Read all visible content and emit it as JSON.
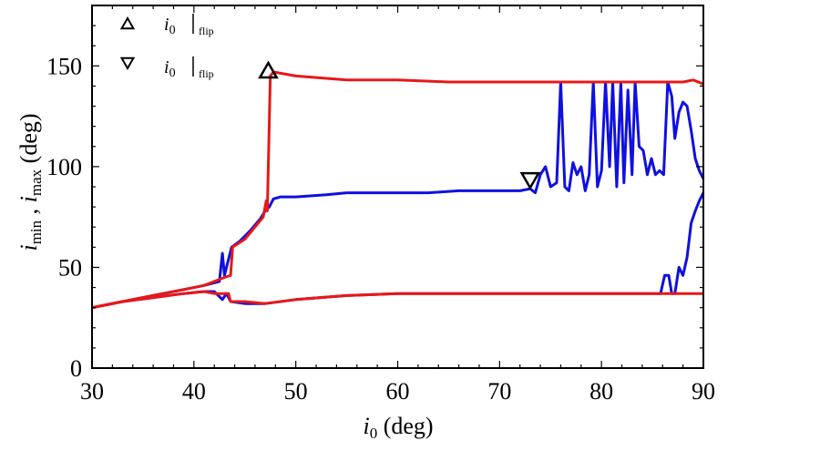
{
  "chart_data": {
    "type": "line",
    "title": "",
    "xlabel_main": "i",
    "xlabel_sub": "0",
    "xlabel_unit": " (deg)",
    "ylabel_min_main": "i",
    "ylabel_min_sub": "min",
    "ylabel_sep": " , ",
    "ylabel_max_main": "i",
    "ylabel_max_sub": "max",
    "ylabel_unit": " (deg)",
    "xlim": [
      30,
      90
    ],
    "ylim": [
      0,
      180
    ],
    "xticks": [
      30,
      40,
      50,
      60,
      70,
      80,
      90
    ],
    "yticks": [
      0,
      50,
      100,
      150
    ],
    "colors": {
      "blue": "#1010e0",
      "red": "#e81818"
    },
    "legend": [
      {
        "marker": "triangle-up",
        "main": "i",
        "sub": "0",
        "subscript": "flip"
      },
      {
        "marker": "triangle-down",
        "main": "i",
        "sub": "0",
        "subscript": "flip"
      }
    ],
    "markers": [
      {
        "shape": "triangle-up",
        "x": 47.3,
        "y": 147
      },
      {
        "shape": "triangle-down",
        "x": 73.0,
        "y": 94
      }
    ],
    "series": [
      {
        "name": "i_max (blue)",
        "color": "#1010e0",
        "points": [
          [
            30,
            30
          ],
          [
            33,
            33
          ],
          [
            36,
            36
          ],
          [
            39,
            39
          ],
          [
            41,
            41
          ],
          [
            42.5,
            43
          ],
          [
            42.8,
            57
          ],
          [
            43,
            46
          ],
          [
            43.3,
            52
          ],
          [
            43.7,
            60
          ],
          [
            44.5,
            63
          ],
          [
            45.5,
            68
          ],
          [
            46.5,
            74
          ],
          [
            47,
            78
          ],
          [
            47.4,
            80
          ],
          [
            47.8,
            84
          ],
          [
            48.5,
            85
          ],
          [
            50,
            85
          ],
          [
            53,
            86
          ],
          [
            55,
            87
          ],
          [
            57,
            87
          ],
          [
            60,
            87
          ],
          [
            63,
            87
          ],
          [
            66,
            88
          ],
          [
            70,
            88
          ],
          [
            72,
            88
          ],
          [
            73,
            89
          ],
          [
            73.5,
            87
          ],
          [
            74,
            96
          ],
          [
            74.5,
            100
          ],
          [
            75,
            90
          ],
          [
            75.6,
            92
          ],
          [
            76,
            142
          ],
          [
            76.4,
            90
          ],
          [
            76.8,
            88
          ],
          [
            77.2,
            102
          ],
          [
            77.6,
            96
          ],
          [
            78,
            100
          ],
          [
            78.4,
            88
          ],
          [
            78.8,
            96
          ],
          [
            79.2,
            142
          ],
          [
            79.6,
            90
          ],
          [
            80,
            98
          ],
          [
            80.4,
            142
          ],
          [
            80.8,
            100
          ],
          [
            81.1,
            142
          ],
          [
            81.5,
            90
          ],
          [
            81.9,
            142
          ],
          [
            82.2,
            92
          ],
          [
            82.6,
            138
          ],
          [
            83,
            96
          ],
          [
            83.3,
            142
          ],
          [
            83.7,
            110
          ],
          [
            84.1,
            108
          ],
          [
            84.5,
            96
          ],
          [
            84.9,
            104
          ],
          [
            85.3,
            96
          ],
          [
            85.7,
            98
          ],
          [
            86.1,
            96
          ],
          [
            86.5,
            142
          ],
          [
            86.9,
            135
          ],
          [
            87.2,
            114
          ],
          [
            87.6,
            127
          ],
          [
            88,
            132
          ],
          [
            88.4,
            130
          ],
          [
            88.8,
            118
          ],
          [
            89.2,
            104
          ],
          [
            89.6,
            98
          ],
          [
            90,
            94
          ]
        ]
      },
      {
        "name": "i_min (blue)",
        "color": "#1010e0",
        "points": [
          [
            30,
            30
          ],
          [
            33,
            33
          ],
          [
            36,
            35
          ],
          [
            39,
            37
          ],
          [
            41,
            38
          ],
          [
            42,
            38
          ],
          [
            42.8,
            34
          ],
          [
            43.2,
            37
          ],
          [
            43.6,
            33
          ],
          [
            45,
            32
          ],
          [
            47,
            32
          ],
          [
            50,
            34
          ],
          [
            55,
            36
          ],
          [
            60,
            37
          ],
          [
            65,
            37
          ],
          [
            70,
            37
          ],
          [
            75,
            37
          ],
          [
            80,
            37
          ],
          [
            85,
            37
          ],
          [
            85.8,
            37
          ],
          [
            86.2,
            46
          ],
          [
            86.6,
            46
          ],
          [
            86.9,
            37
          ],
          [
            87.2,
            37
          ],
          [
            87.6,
            50
          ],
          [
            88,
            46
          ],
          [
            88.4,
            55
          ],
          [
            88.8,
            72
          ],
          [
            89.2,
            78
          ],
          [
            89.6,
            83
          ],
          [
            90,
            87
          ]
        ]
      },
      {
        "name": "i_max (red)",
        "color": "#e81818",
        "points": [
          [
            30,
            30
          ],
          [
            33,
            33
          ],
          [
            36,
            36
          ],
          [
            39,
            39
          ],
          [
            41,
            41
          ],
          [
            43,
            45
          ],
          [
            43.6,
            46
          ],
          [
            43.8,
            60
          ],
          [
            45,
            64
          ],
          [
            46,
            70
          ],
          [
            46.8,
            75
          ],
          [
            47.1,
            83
          ],
          [
            47.2,
            78
          ],
          [
            47.5,
            145
          ],
          [
            47.8,
            147
          ],
          [
            50,
            145
          ],
          [
            55,
            143
          ],
          [
            60,
            143
          ],
          [
            65,
            142
          ],
          [
            70,
            142
          ],
          [
            75,
            142
          ],
          [
            80,
            142
          ],
          [
            85,
            142
          ],
          [
            88,
            142
          ],
          [
            89,
            143
          ],
          [
            90,
            141
          ]
        ]
      },
      {
        "name": "i_min (red)",
        "color": "#e81818",
        "points": [
          [
            30,
            30
          ],
          [
            33,
            33
          ],
          [
            36,
            35
          ],
          [
            39,
            37
          ],
          [
            41,
            38
          ],
          [
            42,
            37
          ],
          [
            43.4,
            37
          ],
          [
            43.6,
            33
          ],
          [
            45,
            33
          ],
          [
            47,
            32
          ],
          [
            50,
            34
          ],
          [
            55,
            36
          ],
          [
            60,
            37
          ],
          [
            65,
            37
          ],
          [
            70,
            37
          ],
          [
            75,
            37
          ],
          [
            80,
            37
          ],
          [
            85,
            37
          ],
          [
            88,
            37
          ],
          [
            90,
            37
          ]
        ]
      }
    ]
  }
}
